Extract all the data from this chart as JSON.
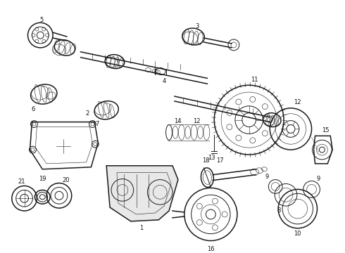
{
  "title": "",
  "background_color": "#ffffff",
  "line_color": "#1a1a1a",
  "text_color": "#111111",
  "fig_width": 4.9,
  "fig_height": 3.6,
  "dpi": 100,
  "lw_thin": 0.4,
  "lw_med": 0.7,
  "lw_thick": 1.1,
  "fs_label": 6.0
}
